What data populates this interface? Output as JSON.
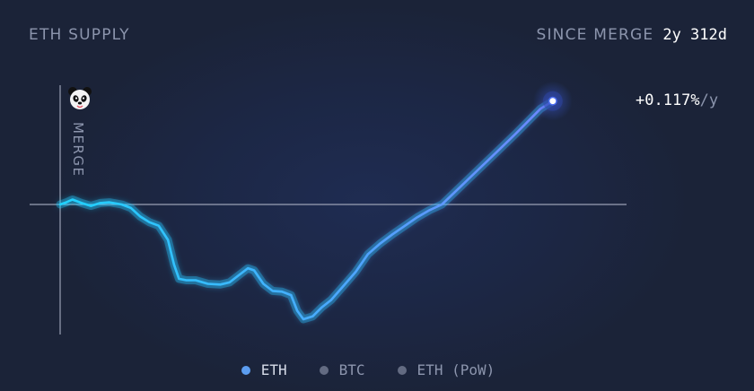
{
  "header": {
    "title": "ETH SUPPLY",
    "since_label": "SINCE MERGE",
    "since_value": "2y 312d"
  },
  "rate": {
    "value": "+0.117%",
    "unit": "/y"
  },
  "merge_label": "MERGE",
  "legend": [
    {
      "label": "ETH",
      "color": "#5c9df0",
      "active": true
    },
    {
      "label": "BTC",
      "color": "#636b82",
      "active": false
    },
    {
      "label": "ETH (PoW)",
      "color": "#636b82",
      "active": false
    }
  ],
  "colors": {
    "line_start": "#1fd3ff",
    "line_end": "#6f87ff",
    "baseline": "#9aa1b5",
    "background": "#1b2338"
  },
  "chart_data": {
    "type": "line",
    "y_unit": "%",
    "x_range": [
      0,
      1
    ],
    "series": [
      {
        "name": "ETH",
        "points": [
          [
            0.0,
            0.0
          ],
          [
            0.01,
            0.003
          ],
          [
            0.02,
            0.007
          ],
          [
            0.035,
            0.002
          ],
          [
            0.05,
            -0.002
          ],
          [
            0.065,
            0.002
          ],
          [
            0.08,
            0.003
          ],
          [
            0.1,
            0.0
          ],
          [
            0.115,
            -0.005
          ],
          [
            0.13,
            -0.017
          ],
          [
            0.145,
            -0.025
          ],
          [
            0.16,
            -0.03
          ],
          [
            0.175,
            -0.05
          ],
          [
            0.185,
            -0.085
          ],
          [
            0.193,
            -0.105
          ],
          [
            0.205,
            -0.107
          ],
          [
            0.22,
            -0.107
          ],
          [
            0.24,
            -0.112
          ],
          [
            0.26,
            -0.113
          ],
          [
            0.275,
            -0.11
          ],
          [
            0.29,
            -0.1
          ],
          [
            0.305,
            -0.09
          ],
          [
            0.315,
            -0.093
          ],
          [
            0.33,
            -0.112
          ],
          [
            0.345,
            -0.122
          ],
          [
            0.36,
            -0.123
          ],
          [
            0.375,
            -0.128
          ],
          [
            0.385,
            -0.15
          ],
          [
            0.395,
            -0.162
          ],
          [
            0.41,
            -0.158
          ],
          [
            0.425,
            -0.145
          ],
          [
            0.44,
            -0.135
          ],
          [
            0.46,
            -0.115
          ],
          [
            0.48,
            -0.095
          ],
          [
            0.5,
            -0.07
          ],
          [
            0.52,
            -0.055
          ],
          [
            0.54,
            -0.042
          ],
          [
            0.56,
            -0.03
          ],
          [
            0.58,
            -0.018
          ],
          [
            0.6,
            -0.008
          ],
          [
            0.62,
            0.0
          ],
          [
            0.65,
            0.025
          ],
          [
            0.68,
            0.05
          ],
          [
            0.71,
            0.075
          ],
          [
            0.74,
            0.1
          ],
          [
            0.78,
            0.135
          ],
          [
            0.8,
            0.146
          ]
        ]
      }
    ],
    "baseline_y": 0,
    "merge_x": 0,
    "legend_position": "bottom-center"
  }
}
